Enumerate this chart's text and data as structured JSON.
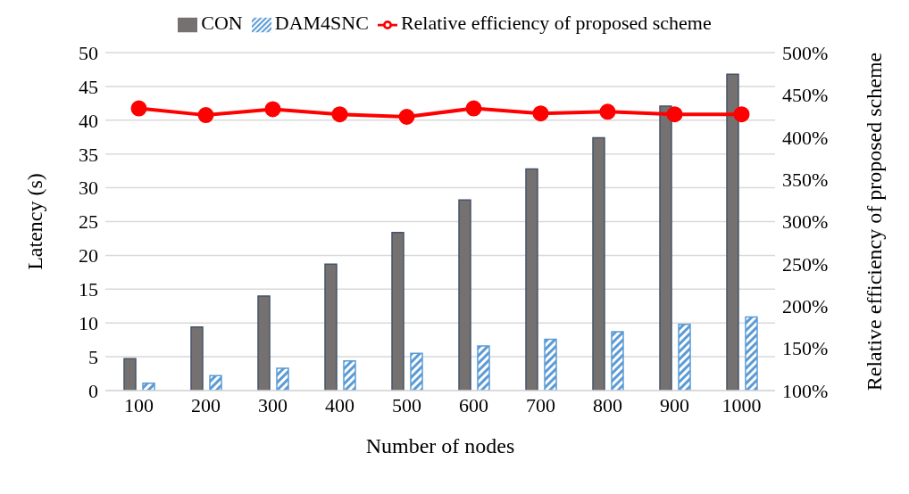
{
  "chart_data": {
    "type": "bar",
    "xlabel": "Number of nodes",
    "ylabel": "Latency (s)",
    "y2label": "Relative efficiency of proposed scheme",
    "categories": [
      "100",
      "200",
      "300",
      "400",
      "500",
      "600",
      "700",
      "800",
      "900",
      "1000"
    ],
    "series": [
      {
        "name": "CON",
        "color": "#767171",
        "values": [
          4.7,
          9.4,
          14.0,
          18.7,
          23.4,
          28.2,
          32.8,
          37.4,
          42.1,
          46.8
        ]
      },
      {
        "name": "DAM4SNC",
        "color": "#5b9bd5",
        "values": [
          1.1,
          2.2,
          3.3,
          4.4,
          5.5,
          6.6,
          7.6,
          8.7,
          9.8,
          10.9
        ]
      },
      {
        "name": "Relative efficiency of proposed scheme",
        "type": "line",
        "axis": "y2",
        "color": "#ff0000",
        "marker": "circle",
        "values": [
          434,
          426,
          433,
          427,
          424,
          434,
          428,
          430,
          427,
          427
        ]
      }
    ],
    "ylim": [
      0,
      50
    ],
    "yticks": [
      0,
      5,
      10,
      15,
      20,
      25,
      30,
      35,
      40,
      45,
      50
    ],
    "y2lim": [
      100,
      500
    ],
    "y2ticks": [
      {
        "value": 100,
        "label": "100%"
      },
      {
        "value": 150,
        "label": "150%"
      },
      {
        "value": 200,
        "label": "200%"
      },
      {
        "value": 250,
        "label": "250%"
      },
      {
        "value": 300,
        "label": "300%"
      },
      {
        "value": 350,
        "label": "350%"
      },
      {
        "value": 400,
        "label": "400%"
      },
      {
        "value": 450,
        "label": "450%"
      },
      {
        "value": 500,
        "label": "500%"
      }
    ],
    "grid": "y",
    "legend": "top"
  }
}
